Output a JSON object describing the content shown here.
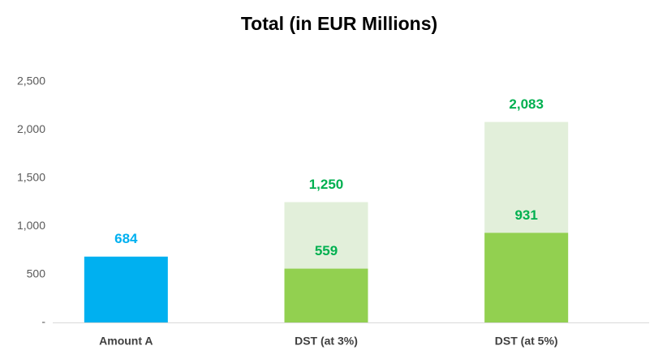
{
  "chart_data": {
    "type": "bar",
    "title": "Total (in EUR Millions)",
    "categories": [
      "Amount A",
      "DST (at 3%)",
      "DST (at 5%)"
    ],
    "overlap": true,
    "series": [
      {
        "color": "#e2efda",
        "values": [
          null,
          1250,
          2083
        ],
        "value_labels": [
          null,
          "1,250",
          "2,083"
        ],
        "label_color": "#00b050"
      },
      {
        "colors": [
          "#00b0f0",
          "#92d050",
          "#92d050"
        ],
        "values": [
          684,
          559,
          931
        ],
        "value_labels": [
          "684",
          "559",
          "931"
        ],
        "label_colors": [
          "#00b0f0",
          "#00b050",
          "#00b050"
        ]
      }
    ],
    "ylim": [
      0,
      2500
    ],
    "yticks": [
      {
        "value": 0,
        "label": "-"
      },
      500,
      {
        "value": 1000,
        "label": "1,000"
      },
      {
        "value": 1500,
        "label": "1,500"
      },
      {
        "value": 2000,
        "label": "2,000"
      },
      {
        "value": 2500,
        "label": "2,500"
      }
    ],
    "grid": false
  }
}
